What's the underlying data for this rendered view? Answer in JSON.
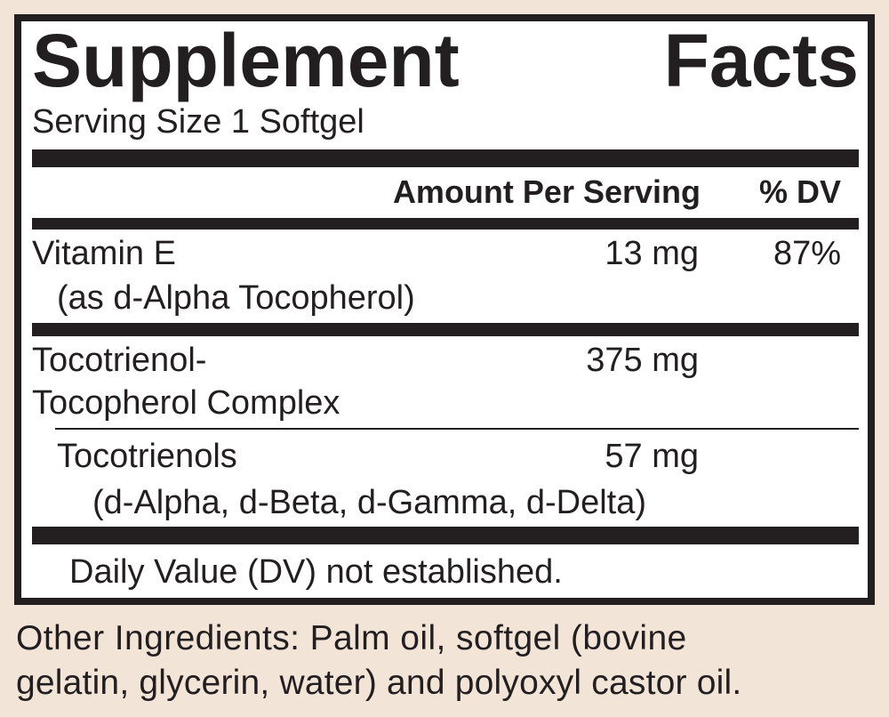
{
  "title": {
    "word1": "Supplement",
    "word2": "Facts"
  },
  "serving_size": "Serving Size 1 Softgel",
  "header": {
    "amount": "Amount Per Serving",
    "dv": "% DV"
  },
  "rows": [
    {
      "name": "Vitamin E",
      "sub": "(as d-Alpha Tocopherol)",
      "amount": "13 mg",
      "dv": "87%"
    },
    {
      "name": "Tocotrienol-",
      "name2": "Tocopherol Complex",
      "amount": "375 mg"
    },
    {
      "name": "Tocotrienols",
      "sub": "(d-Alpha, d-Beta, d-Gamma, d-Delta)",
      "amount": "57 mg"
    }
  ],
  "footnote": "Daily Value (DV) not established.",
  "other_ingredients": {
    "line1": "Other Ingredients: Palm oil, softgel (bovine",
    "line2": "gelatin, glycerin, water) and polyoxyl castor oil."
  }
}
